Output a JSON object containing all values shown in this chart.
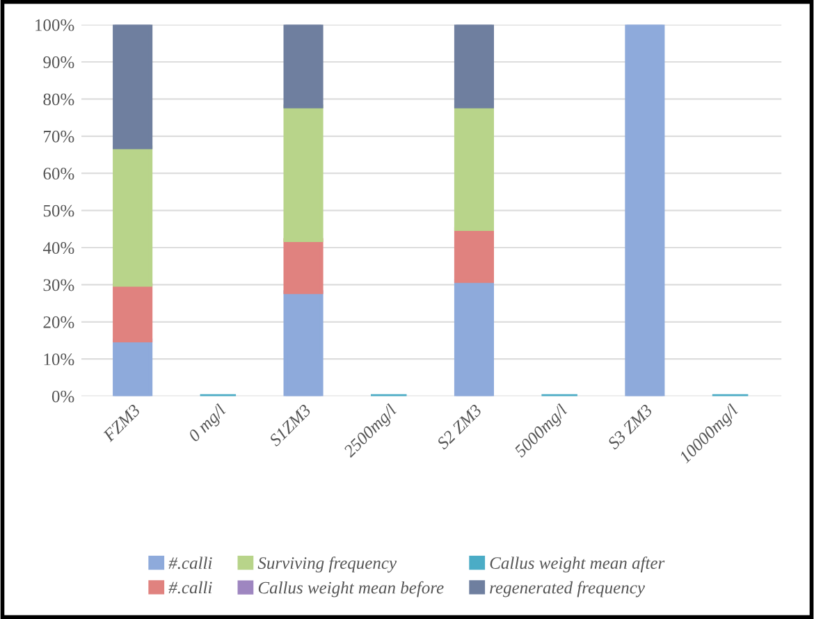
{
  "chart_data": {
    "type": "bar",
    "stacked": true,
    "categories": [
      "FZM3",
      "0 mg/l",
      "S1ZM3",
      "2500mg/l",
      "S2 ZM3",
      "5000mg/l",
      "S3 ZM3",
      "10000mg/l"
    ],
    "series": [
      {
        "name": "#.calli",
        "color": "#8eaadb",
        "values": [
          15,
          null,
          28,
          null,
          31,
          null,
          100,
          null
        ]
      },
      {
        "name": "#.calli",
        "color": "#e0827f",
        "values": [
          15,
          null,
          14,
          null,
          14,
          null,
          null,
          null
        ]
      },
      {
        "name": "Surviving frequency",
        "color": "#b8d48a",
        "values": [
          37,
          null,
          36,
          null,
          33,
          null,
          null,
          null
        ]
      },
      {
        "name": "Callus weight mean before",
        "color": "#9e86c0",
        "values": [
          null,
          null,
          null,
          null,
          null,
          null,
          null,
          null
        ]
      },
      {
        "name": "Callus weight mean after",
        "color": "#4bacc6",
        "values": [
          null,
          0,
          null,
          0,
          null,
          0,
          null,
          0
        ]
      },
      {
        "name": "regenerated frequency",
        "color": "#6f7f9f",
        "values": [
          33,
          null,
          22,
          null,
          22,
          null,
          null,
          null
        ]
      }
    ],
    "ylim": [
      0,
      100
    ],
    "yticks": [
      {
        "value": 0,
        "label": "0%"
      },
      {
        "value": 10,
        "label": "10%"
      },
      {
        "value": 20,
        "label": "20%"
      },
      {
        "value": 30,
        "label": "30%"
      },
      {
        "value": 40,
        "label": "40%"
      },
      {
        "value": 50,
        "label": "50%"
      },
      {
        "value": 60,
        "label": "60%"
      },
      {
        "value": 70,
        "label": "70%"
      },
      {
        "value": 80,
        "label": "80%"
      },
      {
        "value": 90,
        "label": "90%"
      },
      {
        "value": 100,
        "label": "100%"
      }
    ],
    "grid": "y",
    "legend": "bottom"
  }
}
